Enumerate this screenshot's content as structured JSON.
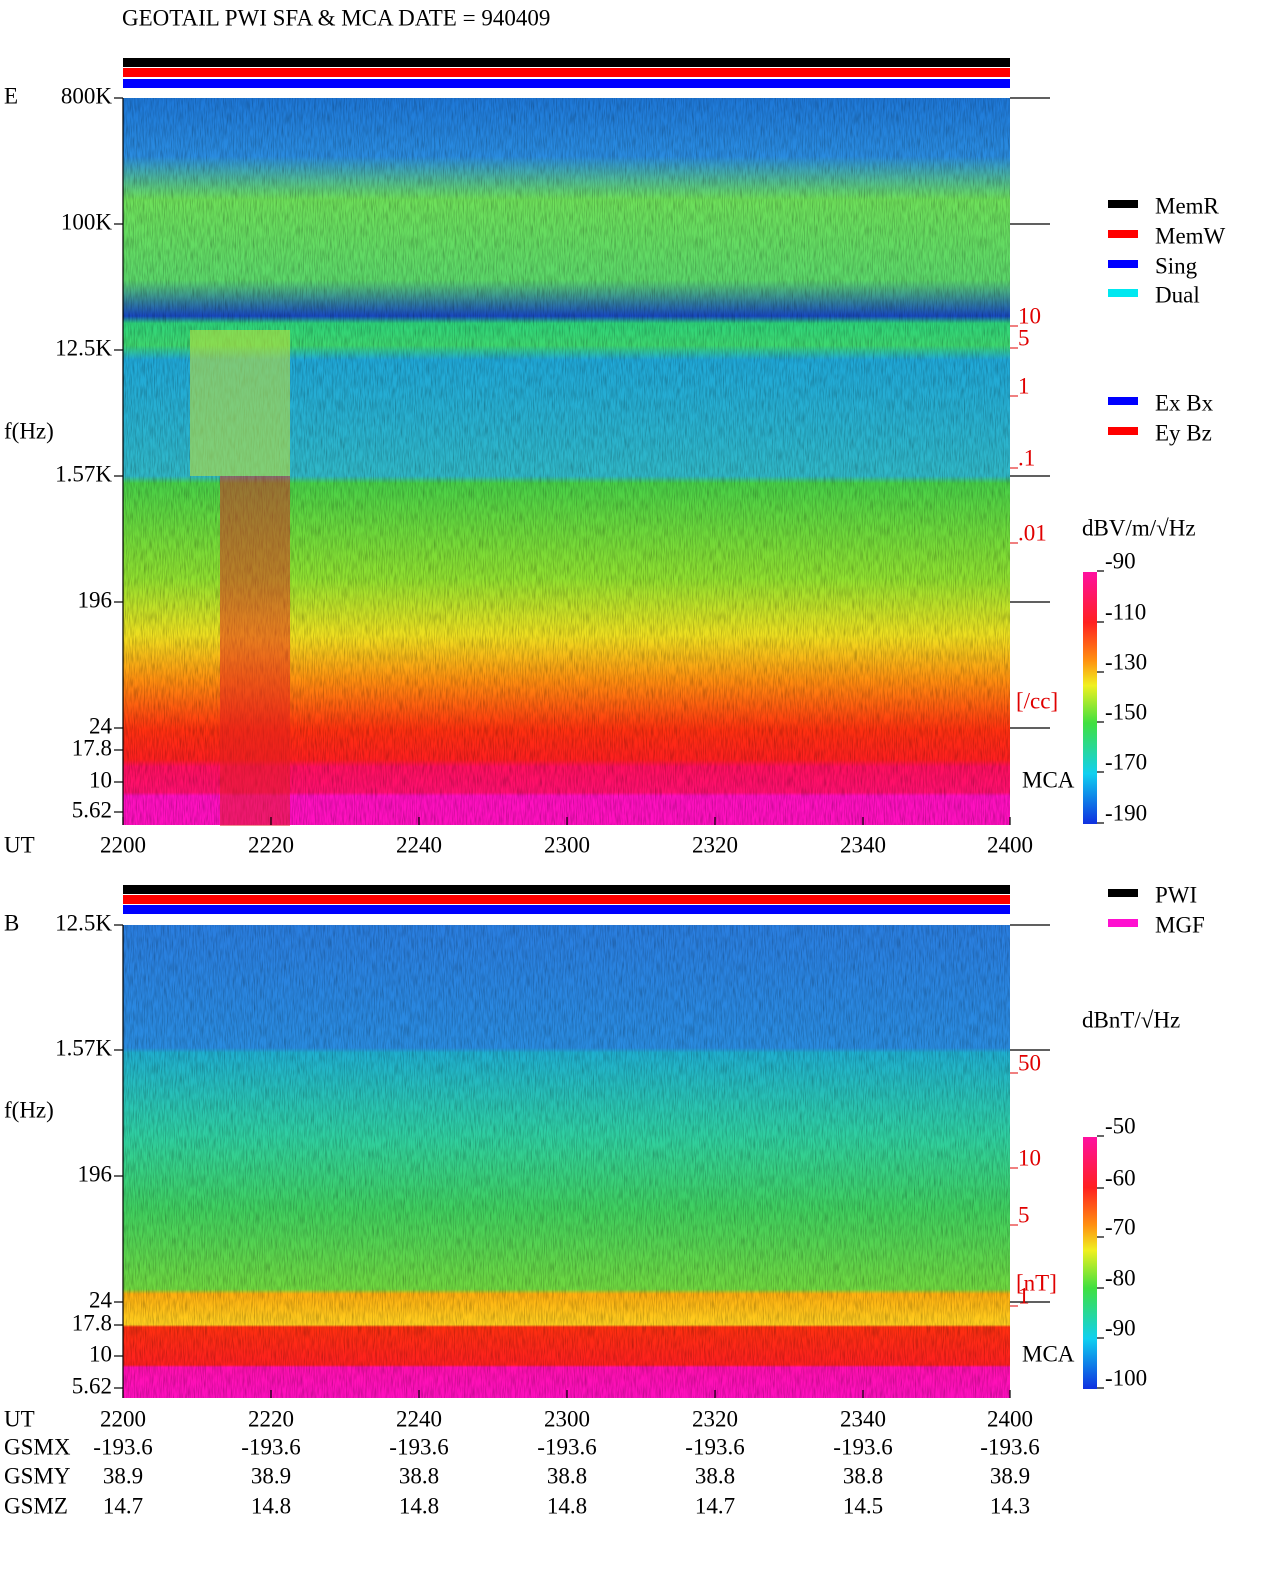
{
  "header": {
    "title": "GEOTAIL  PWI SFA & MCA   DATE = 940409"
  },
  "panels": [
    {
      "label": "E",
      "ylabel": "f(Hz)",
      "yticks": [
        "800K",
        "100K",
        "12.5K",
        "1.57K",
        "196",
        "24",
        "17.8",
        "10",
        "5.62"
      ],
      "density_ticks": [
        "10",
        "5",
        "1",
        ".1",
        ".01"
      ],
      "density_unit": "[/cc]",
      "mca": "MCA",
      "xlabel": "UT",
      "xticks": [
        "2200",
        "2220",
        "2240",
        "2300",
        "2320",
        "2340",
        "2400"
      ],
      "legend": [
        "MemR",
        "MemW",
        "Sing",
        "Dual"
      ],
      "legend2": [
        "Ex Bx",
        "Ey Bz"
      ],
      "colorbar": {
        "unit": "dBV/m/√Hz",
        "ticks": [
          "-90",
          "-110",
          "-130",
          "-150",
          "-170",
          "-190"
        ]
      }
    },
    {
      "label": "B",
      "ylabel": "f(Hz)",
      "yticks": [
        "12.5K",
        "1.57K",
        "196",
        "24",
        "17.8",
        "10",
        "5.62"
      ],
      "density_ticks": [
        "50",
        "10",
        "5",
        "1"
      ],
      "density_unit": "[nT]",
      "mca": "MCA",
      "xlabel": "UT",
      "xticks": [
        "2200",
        "2220",
        "2240",
        "2300",
        "2320",
        "2340",
        "2400"
      ],
      "legend": [
        "PWI",
        "MGF"
      ],
      "colorbar": {
        "unit": "dBnT/√Hz",
        "ticks": [
          "-50",
          "-60",
          "-70",
          "-80",
          "-90",
          "-100"
        ]
      }
    }
  ],
  "orbit": {
    "rows": [
      {
        "label": "GSMX",
        "values": [
          "-193.6",
          "-193.6",
          "-193.6",
          "-193.6",
          "-193.6",
          "-193.6",
          "-193.6"
        ]
      },
      {
        "label": "GSMY",
        "values": [
          "38.9",
          "38.9",
          "38.8",
          "38.8",
          "38.8",
          "38.8",
          "38.9"
        ]
      },
      {
        "label": "GSMZ",
        "values": [
          "14.7",
          "14.8",
          "14.8",
          "14.8",
          "14.7",
          "14.5",
          "14.3"
        ]
      }
    ]
  }
}
